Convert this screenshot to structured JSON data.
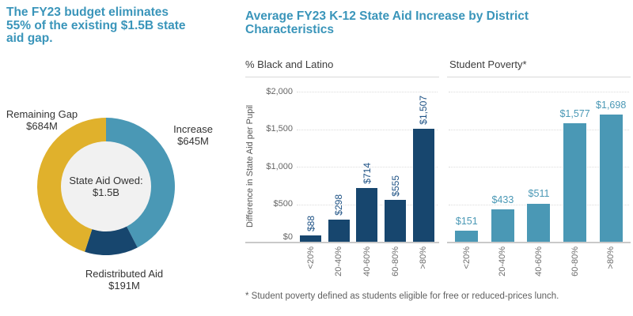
{
  "left_panel": {
    "headline": "The FY23 budget eliminates 55% of the existing $1.5B state aid gap."
  },
  "right_panel": {
    "title": "Average FY23 K-12 State Aid Increase by District Characteristics",
    "footnote": "* Student poverty defined as students eligible for free or reduced-prices lunch."
  },
  "colors": {
    "accent_teal": "#3a95ba",
    "bar_navy": "#17466e",
    "bar_teal": "#4a98b5",
    "gold": "#e0b12c",
    "donut_hole": "#f1f1f1",
    "text_dark": "#333333",
    "text_gray": "#6e6e6e"
  },
  "chart_data": [
    {
      "type": "pie",
      "subtype": "donut",
      "center_label": [
        "State Aid Owed:",
        "$1.5B"
      ],
      "start_angle_deg": 0,
      "clockwise": true,
      "slices": [
        {
          "label": "Increase",
          "value_label": "$645M",
          "value": 645,
          "color": "#4a98b5"
        },
        {
          "label": "Redistributed Aid",
          "value_label": "$191M",
          "value": 191,
          "color": "#17466e"
        },
        {
          "label": "Remaining Gap",
          "value_label": "$684M",
          "value": 684,
          "color": "#e0b12c"
        }
      ]
    },
    {
      "type": "bar",
      "title": "% Black and Latino",
      "ylabel": "Difference in State Aid per Pupil",
      "categories": [
        "<20%",
        "20-40%",
        "40-60%",
        "60-80%",
        ">80%"
      ],
      "values": [
        88,
        298,
        714,
        555,
        1507
      ],
      "value_labels": [
        "$88",
        "$298",
        "$714",
        "$555",
        "$1,507"
      ],
      "bar_color": "#17466e",
      "label_color": "#1d5184",
      "ylim": [
        0,
        2000
      ],
      "y_ticks": [
        "$0",
        "$500",
        "$1,000",
        "$1,500",
        "$2,000"
      ],
      "y_tick_values": [
        0,
        500,
        1000,
        1500,
        2000
      ],
      "grid": "horizontal-dotted",
      "legend": "none"
    },
    {
      "type": "bar",
      "title": "Student Poverty*",
      "ylabel": "",
      "categories": [
        "<20%",
        "20-40%",
        "40-60%",
        "60-80%",
        ">80%"
      ],
      "values": [
        151,
        433,
        511,
        1577,
        1698
      ],
      "value_labels": [
        "$151",
        "$433",
        "$511",
        "$1,577",
        "$1,698"
      ],
      "bar_color": "#4a98b5",
      "label_color": "#4a98b5",
      "ylim": [
        0,
        2000
      ],
      "y_ticks": [],
      "y_tick_values": [
        0,
        500,
        1000,
        1500,
        2000
      ],
      "grid": "horizontal-dotted",
      "legend": "none"
    }
  ]
}
